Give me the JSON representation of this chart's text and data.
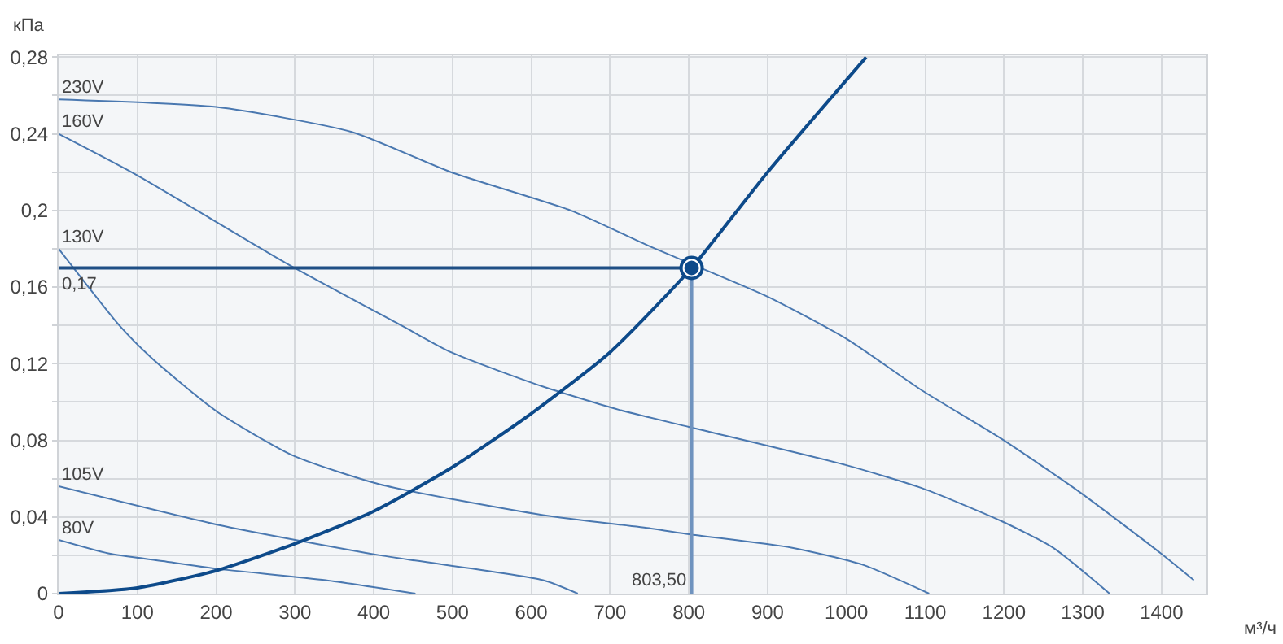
{
  "chart_data": {
    "type": "line",
    "xlabel": "м³/ч",
    "ylabel": "кПа",
    "xlim": [
      0,
      1457
    ],
    "ylim": [
      0,
      0.281
    ],
    "xticks": [
      0,
      100,
      200,
      300,
      400,
      500,
      600,
      700,
      800,
      900,
      1000,
      1100,
      1200,
      1300,
      1400
    ],
    "yticks": [
      0,
      {
        "value": 0.02,
        "label": null
      },
      {
        "value": 0.04,
        "label": "0,04"
      },
      {
        "value": 0.06,
        "label": null
      },
      {
        "value": 0.08,
        "label": "0,08"
      },
      {
        "value": 0.1,
        "label": null
      },
      {
        "value": 0.12,
        "label": "0,12"
      },
      {
        "value": 0.14,
        "label": null
      },
      {
        "value": 0.16,
        "label": "0,16"
      },
      {
        "value": 0.18,
        "label": null
      },
      {
        "value": 0.2,
        "label": "0,2"
      },
      {
        "value": 0.22,
        "label": null
      },
      {
        "value": 0.24,
        "label": "0,24"
      },
      {
        "value": 0.26,
        "label": null
      },
      {
        "value": 0.28,
        "label": "0,28"
      }
    ],
    "grid": true,
    "legend": false,
    "line_style": "solid",
    "series": [
      {
        "name": "230V",
        "color": "#4a78b0",
        "x": [
          0,
          200,
          372,
          498,
          650,
          752,
          803.5,
          900,
          1000,
          1096,
          1196,
          1296,
          1399,
          1441
        ],
        "values": [
          0.258,
          0.254,
          0.241,
          0.22,
          0.2,
          0.181,
          0.172,
          0.155,
          0.133,
          0.106,
          0.081,
          0.053,
          0.021,
          0.007
        ]
      },
      {
        "name": "160V",
        "color": "#4a78b0",
        "x": [
          0,
          97,
          291,
          435,
          498,
          615,
          711,
          800,
          1000,
          1096,
          1196,
          1262,
          1334
        ],
        "values": [
          0.24,
          0.219,
          0.172,
          0.14,
          0.126,
          0.108,
          0.096,
          0.087,
          0.067,
          0.055,
          0.038,
          0.024,
          0
        ]
      },
      {
        "name": "130V",
        "color": "#4a78b0",
        "x": [
          0,
          77,
          118,
          201,
          298,
          408,
          615,
          752,
          800,
          930,
          1021,
          1105
        ],
        "values": [
          0.18,
          0.14,
          0.123,
          0.095,
          0.072,
          0.057,
          0.041,
          0.034,
          0.031,
          0.024,
          0.015,
          0
        ]
      },
      {
        "name": "105V",
        "color": "#4a78b0",
        "x": [
          0,
          201,
          408,
          615,
          659
        ],
        "values": [
          0.056,
          0.036,
          0.02,
          0.007,
          0
        ]
      },
      {
        "name": "80V",
        "color": "#4a78b0",
        "x": [
          0,
          63,
          132,
          200,
          339,
          453
        ],
        "values": [
          0.028,
          0.021,
          0.017,
          0.013,
          0.007,
          0
        ]
      },
      {
        "color": "#0d4a8a",
        "x": [
          0,
          100,
          200,
          300,
          400,
          500,
          600,
          700,
          803.5,
          900,
          1025
        ],
        "values": [
          0,
          0.003,
          0.012,
          0.026,
          0.043,
          0.066,
          0.094,
          0.126,
          0.17,
          0.22,
          0.28
        ]
      },
      {
        "color": "#1f4f85",
        "x": [
          0,
          803.5
        ],
        "values": [
          0.17,
          0.17
        ]
      },
      {
        "color": "#6f93bf",
        "x": [
          803.5,
          803.5
        ],
        "values": [
          0.17,
          0
        ]
      },
      {
        "type": "scatter",
        "marker": "circle",
        "color": "#0d4a8a",
        "x": [
          803.5
        ],
        "values": [
          0.17
        ]
      }
    ],
    "annotations": [
      {
        "text": "0,17",
        "x": 0,
        "y": 0.17
      },
      {
        "text": "803,50",
        "x": 803.5,
        "y": 0
      }
    ]
  }
}
